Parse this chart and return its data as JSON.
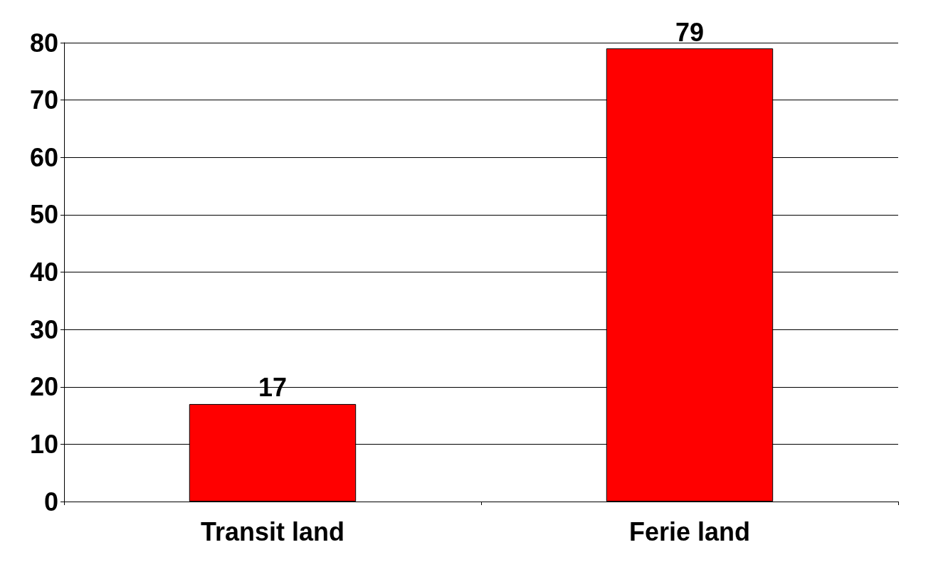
{
  "chart_data": {
    "type": "bar",
    "categories": [
      "Transit land",
      "Ferie land"
    ],
    "values": [
      17,
      79
    ],
    "color": "#ff0000",
    "ylim": [
      0,
      80
    ],
    "yticks": [
      0,
      10,
      20,
      30,
      40,
      50,
      60,
      70,
      80
    ],
    "grid": "y",
    "data_labels": true
  }
}
